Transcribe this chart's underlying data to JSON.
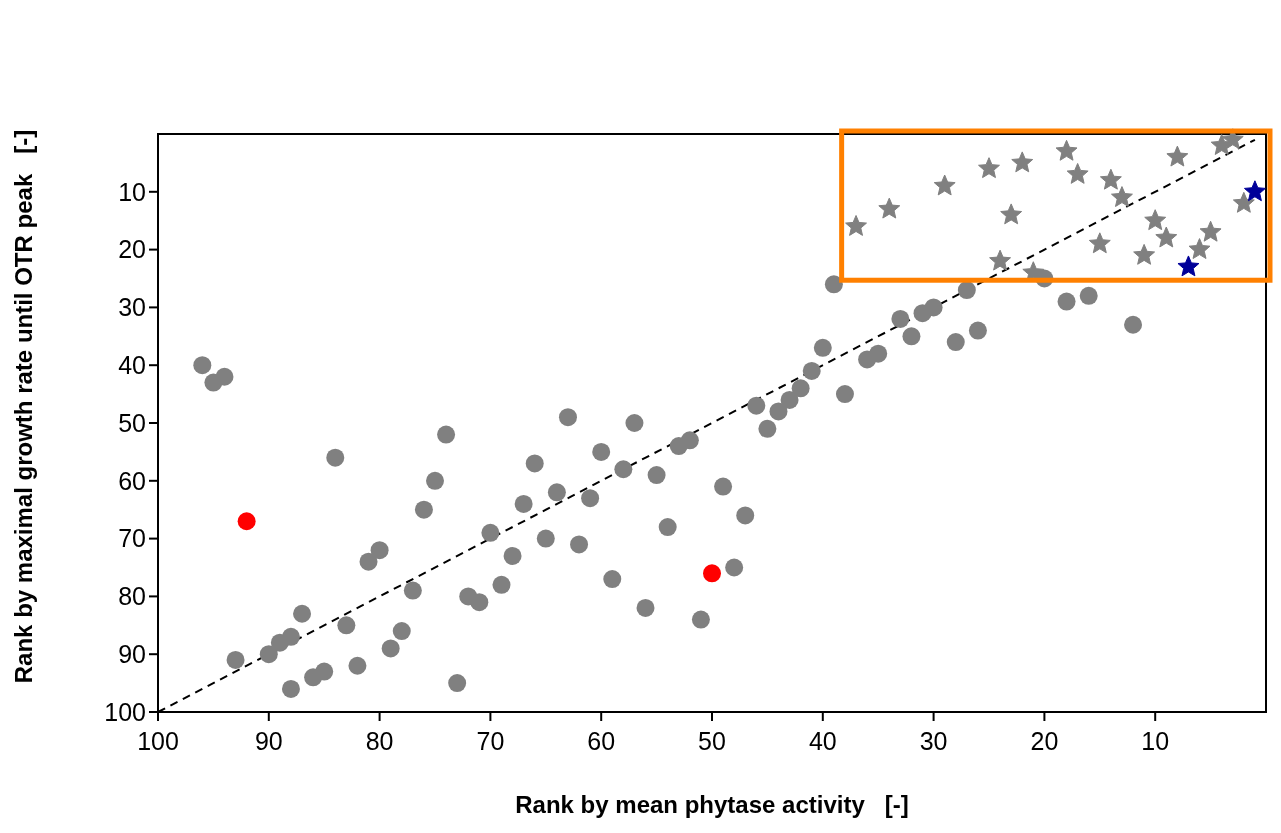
{
  "chart_data": {
    "type": "scatter",
    "xlabel": "Rank by mean phytase activity   [-]",
    "ylabel": "Rank by maximal growth rate until OTR peak   [-]",
    "xlim": [
      100,
      0
    ],
    "ylim": [
      100,
      0
    ],
    "xticks": [
      100,
      90,
      80,
      70,
      60,
      50,
      40,
      30,
      20,
      10
    ],
    "yticks": [
      100,
      90,
      80,
      70,
      60,
      50,
      40,
      30,
      20,
      10
    ],
    "grid": false,
    "series": [
      {
        "marker": "circle",
        "color": "#808080",
        "x": [
          96,
          95,
          94,
          84,
          74,
          75,
          76,
          81,
          80,
          77,
          78,
          79,
          82,
          83,
          87,
          88,
          89,
          90,
          93,
          88,
          86,
          85,
          73,
          72,
          71,
          69,
          68,
          70,
          67,
          66,
          65,
          64,
          63,
          62,
          61,
          60,
          59,
          58,
          57,
          56,
          55,
          54,
          53,
          52,
          51,
          49,
          48,
          47,
          46,
          45,
          44,
          43,
          42,
          41,
          40,
          39,
          38,
          36,
          35,
          33,
          32,
          31,
          30,
          28,
          27,
          26
        ],
        "values": [
          40,
          43,
          42,
          56,
          52,
          60,
          65,
          74,
          72,
          79,
          86,
          89,
          92,
          85,
          83,
          87,
          88,
          90,
          91,
          96,
          94,
          93,
          95,
          80,
          81,
          78,
          73,
          69,
          64,
          57,
          70,
          62,
          49,
          71,
          63,
          55,
          77,
          58,
          50,
          82,
          59,
          68,
          54,
          53,
          84,
          61,
          75,
          66,
          47,
          51,
          48,
          46,
          44,
          41,
          37,
          26,
          45,
          39,
          38,
          32,
          35,
          31,
          30,
          36,
          27,
          34
        ]
      },
      {
        "marker": "circle",
        "color": "#ff0000",
        "x": [
          92,
          50
        ],
        "values": [
          67,
          76
        ]
      },
      {
        "marker": "circle",
        "color": "#808080",
        "x": [
          20,
          18,
          16,
          12
        ],
        "values": [
          25,
          29,
          28,
          33
        ]
      },
      {
        "marker": "star",
        "color": "#808080",
        "x": [
          37,
          34,
          29,
          25,
          22,
          18,
          17,
          14,
          13,
          8,
          4,
          3,
          2,
          23,
          15,
          11,
          10,
          9,
          6,
          5,
          24,
          21
        ],
        "values": [
          16,
          13,
          9,
          6,
          5,
          3,
          7,
          8,
          11,
          4,
          2,
          1,
          12,
          14,
          19,
          21,
          15,
          18,
          20,
          17,
          22,
          24
        ]
      },
      {
        "marker": "star",
        "color": "#000099",
        "x": [
          1,
          7
        ],
        "values": [
          10,
          23
        ]
      },
      {
        "type": "line",
        "line_style": "dashed",
        "color": "#000000",
        "x": [
          100,
          1
        ],
        "values": [
          100,
          1
        ]
      }
    ]
  }
}
